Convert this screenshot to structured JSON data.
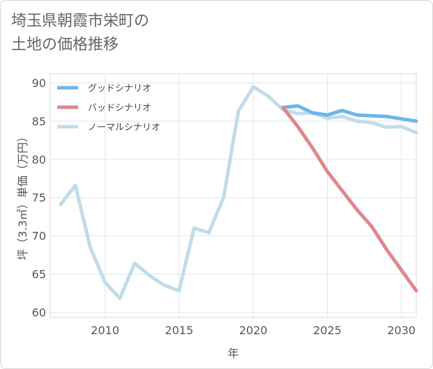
{
  "title_lines": [
    "埼玉県朝霞市栄町の",
    "土地の価格推移"
  ],
  "chart_data": {
    "type": "line",
    "title": "埼玉県朝霞市栄町の土地の価格推移",
    "xlabel": "年",
    "ylabel": "坪（3.3㎡）単価（万円）",
    "xlim": [
      2006.3,
      2031
    ],
    "ylim": [
      59.3,
      91.2
    ],
    "xticks": [
      2010,
      2015,
      2020,
      2025,
      2030
    ],
    "yticks": [
      60,
      65,
      70,
      75,
      80,
      85,
      90
    ],
    "grid": true,
    "legend_position": "top-left",
    "series": [
      {
        "name": "グッドシナリオ",
        "color": "#6cb6ea",
        "x": [
          2022,
          2023,
          2024,
          2025,
          2026,
          2027,
          2028,
          2029,
          2030,
          2031
        ],
        "y": [
          86.8,
          87.0,
          86.1,
          85.8,
          86.4,
          85.8,
          85.7,
          85.6,
          85.3,
          85.0
        ]
      },
      {
        "name": "バッドシナリオ",
        "color": "#e0878f",
        "x": [
          2022,
          2023,
          2024,
          2025,
          2026,
          2027,
          2028,
          2029,
          2030,
          2031
        ],
        "y": [
          86.8,
          84.3,
          81.5,
          78.4,
          75.9,
          73.4,
          71.2,
          68.2,
          65.5,
          62.8
        ]
      },
      {
        "name": "ノーマルシナリオ",
        "color": "#c0dcea",
        "x": [
          2007,
          2008,
          2009,
          2010,
          2011,
          2012,
          2013,
          2014,
          2015,
          2016,
          2017,
          2018,
          2019,
          2020,
          2021,
          2022,
          2023,
          2024,
          2025,
          2026,
          2027,
          2028,
          2029,
          2030,
          2031
        ],
        "y": [
          74.1,
          76.6,
          68.5,
          63.9,
          61.8,
          66.4,
          64.8,
          63.5,
          62.8,
          71.0,
          70.4,
          75.0,
          86.3,
          89.5,
          88.3,
          86.5,
          86.0,
          86.1,
          85.4,
          85.6,
          85.0,
          84.8,
          84.2,
          84.3,
          83.5
        ]
      }
    ]
  }
}
